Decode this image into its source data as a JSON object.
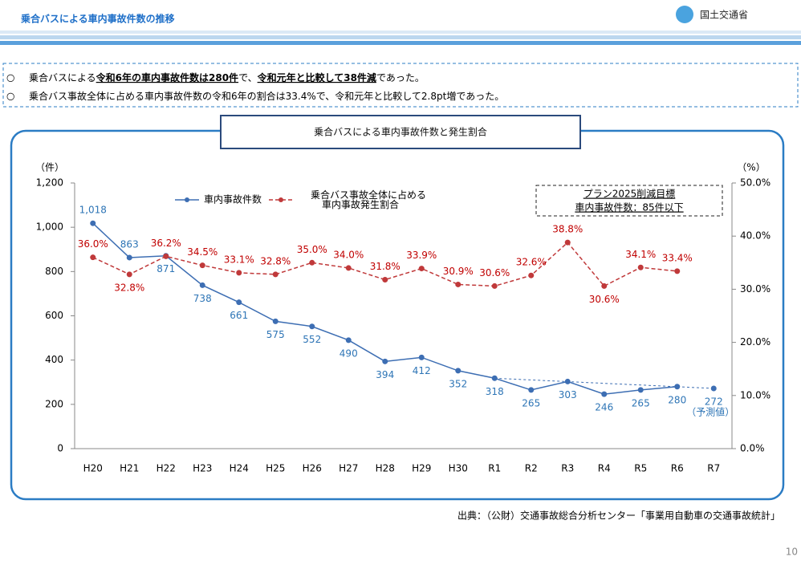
{
  "header": {
    "title": "乗合バスによる車内事故件数の推移",
    "logo": "国土交通省"
  },
  "bullets": [
    {
      "marker": "○",
      "segments": [
        {
          "text": "乗合バスによる"
        },
        {
          "text": "令和6年の車内事故件数は280件",
          "strong": true
        },
        {
          "text": "で、"
        },
        {
          "text": "令和元年と比較して38件減",
          "strong": true
        },
        {
          "text": "であった。"
        }
      ]
    },
    {
      "marker": "○",
      "segments": [
        {
          "text": "乗合バス事故全体に占める車内事故件数の令和6年の割合は33.4%で、令和元年と比較して2.8pt増であった。"
        }
      ]
    }
  ],
  "chart_data": {
    "type": "line",
    "title": "乗合バスによる車内事故件数と発生割合",
    "categories": [
      "H20",
      "H21",
      "H22",
      "H23",
      "H24",
      "H25",
      "H26",
      "H27",
      "H28",
      "H29",
      "H30",
      "R1",
      "R2",
      "R3",
      "R4",
      "R5",
      "R6",
      "R7"
    ],
    "series": [
      {
        "name": "車内事故件数",
        "color": "#3d6eb3",
        "label_color": "#2e75b6",
        "values": [
          1018,
          863,
          871,
          738,
          661,
          575,
          552,
          490,
          394,
          412,
          352,
          318,
          265,
          303,
          246,
          265,
          280,
          272
        ],
        "value_labels": [
          "1,018",
          "863",
          "871",
          "738",
          "661",
          "575",
          "552",
          "490",
          "394",
          "412",
          "352",
          "318",
          "265",
          "303",
          "246",
          "265",
          "280",
          "272"
        ]
      },
      {
        "name": "乗合バス事故全体に占める\n車内事故発生割合",
        "color": "#c0393a",
        "label_color": "#c00000",
        "axis": "y2",
        "dashed": true,
        "values": [
          36.0,
          32.8,
          36.2,
          34.5,
          33.1,
          32.8,
          35.0,
          34.0,
          31.8,
          33.9,
          30.9,
          30.6,
          32.6,
          38.8,
          30.6,
          34.1,
          33.4,
          null
        ],
        "value_labels": [
          "36.0%",
          "32.8%",
          "36.2%",
          "34.5%",
          "33.1%",
          "32.8%",
          "35.0%",
          "34.0%",
          "31.8%",
          "33.9%",
          "30.9%",
          "30.6%",
          "32.6%",
          "38.8%",
          "30.6%",
          "34.1%",
          "33.4%",
          null
        ]
      }
    ],
    "trend_start": "R1",
    "forecast_note": "（予測値）",
    "ylabel": "（件）",
    "y2label": "（%）",
    "ylim": [
      0,
      1200
    ],
    "yticks": [
      0,
      200,
      400,
      600,
      800,
      {
        "value": 1000,
        "label": "1,000"
      },
      {
        "value": 1200,
        "label": "1,200"
      }
    ],
    "y2lim": [
      0,
      50
    ],
    "y2ticks": [
      {
        "value": 0,
        "label": "0.0%"
      },
      {
        "value": 10,
        "label": "10.0%"
      },
      {
        "value": 20,
        "label": "20.0%"
      },
      {
        "value": 30,
        "label": "30.0%"
      },
      {
        "value": 40,
        "label": "40.0%"
      },
      {
        "value": 50,
        "label": "50.0%"
      }
    ],
    "annotation": [
      "プラン2025削減目標",
      "車内事故件数：85件以下"
    ],
    "legend": "top"
  },
  "source": "出典：（公財）交通事故総合分析センター「事業用自動車の交通事故統計」",
  "page_number": "10"
}
